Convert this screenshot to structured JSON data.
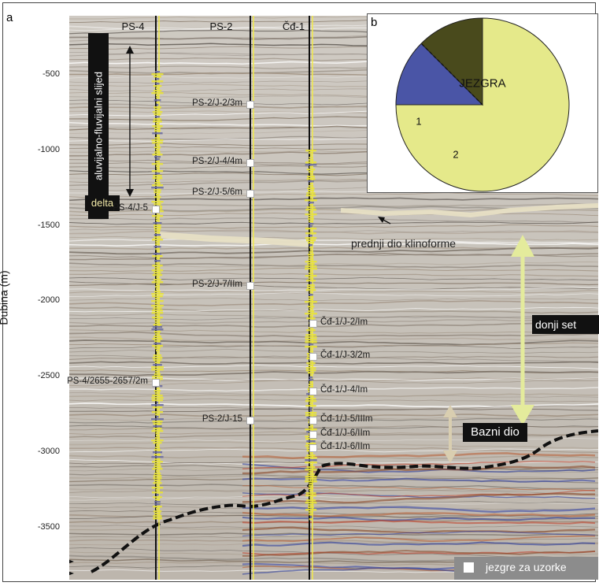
{
  "panel_a": {
    "letter": "a",
    "y_axis_title": "Dubina (m)",
    "y_ticks": [
      "-500",
      "-1000",
      "-1500",
      "-2000",
      "-2500",
      "-3000",
      "-3500"
    ],
    "depth_range_m": [
      -150,
      -3700
    ],
    "wells": [
      {
        "name": "PS-4"
      },
      {
        "name": "PS-2"
      },
      {
        "name": "Čđ-1"
      }
    ],
    "samples_left": [
      {
        "label": "PS-2/J-2/3m",
        "depth": -700
      },
      {
        "label": "PS-2/J-4/4m",
        "depth": -1085
      },
      {
        "label": "PS-2/J-5/6m",
        "depth": -1290
      },
      {
        "label": "PS-4/J-5",
        "depth": -1390
      },
      {
        "label": "PS-2/J-7/IIm",
        "depth": -1900
      },
      {
        "label": "PS-4/2655-2657/2m",
        "depth": -2540
      },
      {
        "label": "PS-2/J-15",
        "depth": -2790
      }
    ],
    "samples_right": [
      {
        "label": "Čđ-1/J-2/Im",
        "depth": -2150
      },
      {
        "label": "Čđ-1/J-3/2m",
        "depth": -2370
      },
      {
        "label": "Čđ-1/J-4/Im",
        "depth": -2600
      },
      {
        "label": "Čđ-1/J-5/IIIm",
        "depth": -2790
      },
      {
        "label": "Čđ-1/J-6/IIm",
        "depth": -2885
      },
      {
        "label": "Čđ-1/J-6/IIm",
        "depth": -2975
      }
    ],
    "annotations": {
      "alluvial": "aluvijalno-fluvijalni slijed",
      "delta": "delta",
      "klinoforme": "prednji dio klinoforme",
      "donji_set": "donji set",
      "bazni_dio": "Bazni dio"
    },
    "legend": {
      "label": "jezgre za uzorke"
    }
  },
  "panel_b": {
    "letter": "b",
    "chart_data": {
      "type": "pie",
      "slices": [
        {
          "label": "JEZGRA",
          "value": 75,
          "color": "#e5e98a"
        },
        {
          "label": "1",
          "value": 12.5,
          "color": "#4a55a6"
        },
        {
          "label": "2",
          "value": 12.5,
          "color": "#494a1c"
        }
      ]
    }
  }
}
